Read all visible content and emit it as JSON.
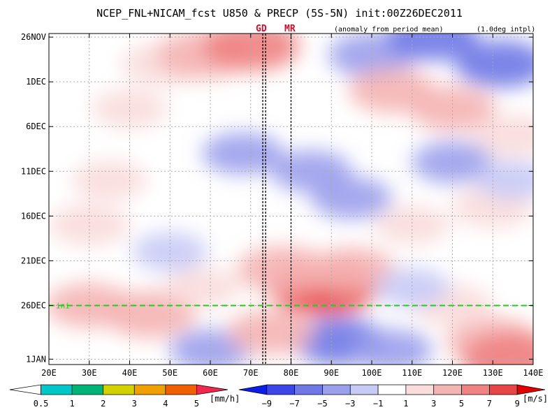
{
  "chart_data": {
    "type": "heatmap",
    "title": "NCEP_FNL+NICAM_fcst U850 & PRECP (5S-5N) init:00Z26DEC2011",
    "note_left": "(anomaly from period mean)",
    "note_right": "(1.0deg intpl)",
    "x_ticks": [
      "20E",
      "30E",
      "40E",
      "50E",
      "60E",
      "70E",
      "80E",
      "90E",
      "100E",
      "110E",
      "120E",
      "130E",
      "140E"
    ],
    "x_lon_range": [
      20,
      140
    ],
    "y_ticks": [
      "26NOV",
      "1DEC",
      "6DEC",
      "11DEC",
      "16DEC",
      "21DEC",
      "26DEC",
      "1JAN"
    ],
    "y_day_index": [
      0,
      5,
      10,
      15,
      20,
      25,
      30,
      36
    ],
    "init_line_day_index": 30,
    "init_line_label": "ini",
    "vertical_markers": [
      {
        "label": "GD",
        "lon": 73
      },
      {
        "label": "MR",
        "lon": 80
      }
    ],
    "precip_colorbar": {
      "labels": [
        "0.5",
        "1",
        "2",
        "3",
        "4",
        "5"
      ],
      "unit": "[mm/h]",
      "colors": [
        "#ffffff",
        "#00c8c8",
        "#00b478",
        "#d2d200",
        "#f0a000",
        "#f06000",
        "#f02850"
      ]
    },
    "u850_colorbar": {
      "labels": [
        "−9",
        "−7",
        "−5",
        "−3",
        "−1",
        "1",
        "3",
        "5",
        "7",
        "9"
      ],
      "unit": "[m/s]",
      "colors": [
        "#0a1ee6",
        "#3c46e6",
        "#6e78e6",
        "#9ba0ec",
        "#c8caf6",
        "#ffffff",
        "#fadcdc",
        "#f5b4b4",
        "#f08282",
        "#e84646",
        "#e00000"
      ]
    },
    "anomaly_pattern": [
      {
        "lon": 48,
        "day": 3,
        "value": 3
      },
      {
        "lon": 58,
        "day": 2,
        "value": 5
      },
      {
        "lon": 70,
        "day": 1,
        "value": 6
      },
      {
        "lon": 100,
        "day": 2,
        "value": -4
      },
      {
        "lon": 115,
        "day": 0,
        "value": -5
      },
      {
        "lon": 132,
        "day": 3,
        "value": -5
      },
      {
        "lon": 105,
        "day": 6,
        "value": 4
      },
      {
        "lon": 120,
        "day": 8,
        "value": 4
      },
      {
        "lon": 135,
        "day": 11,
        "value": 3
      },
      {
        "lon": 40,
        "day": 8,
        "value": 2
      },
      {
        "lon": 68,
        "day": 13,
        "value": -3
      },
      {
        "lon": 85,
        "day": 15,
        "value": -3
      },
      {
        "lon": 95,
        "day": 18,
        "value": -3
      },
      {
        "lon": 35,
        "day": 16,
        "value": 2
      },
      {
        "lon": 30,
        "day": 21,
        "value": 3
      },
      {
        "lon": 120,
        "day": 14,
        "value": -3
      },
      {
        "lon": 130,
        "day": 19,
        "value": 3
      },
      {
        "lon": 135,
        "day": 16,
        "value": -2
      },
      {
        "lon": 110,
        "day": 21,
        "value": 2
      },
      {
        "lon": 88,
        "day": 28,
        "value": 8
      },
      {
        "lon": 78,
        "day": 26,
        "value": 5
      },
      {
        "lon": 95,
        "day": 26,
        "value": 4
      },
      {
        "lon": 45,
        "day": 31,
        "value": 5
      },
      {
        "lon": 30,
        "day": 30,
        "value": 4
      },
      {
        "lon": 58,
        "day": 28,
        "value": 2
      },
      {
        "lon": 92,
        "day": 34,
        "value": -5
      },
      {
        "lon": 105,
        "day": 35,
        "value": -3
      },
      {
        "lon": 130,
        "day": 34,
        "value": 5
      },
      {
        "lon": 135,
        "day": 36,
        "value": 7
      },
      {
        "lon": 120,
        "day": 30,
        "value": 3
      },
      {
        "lon": 60,
        "day": 35,
        "value": -3
      },
      {
        "lon": 75,
        "day": 33,
        "value": 4
      },
      {
        "lon": 50,
        "day": 24,
        "value": -2
      },
      {
        "lon": 110,
        "day": 28,
        "value": -2
      }
    ]
  }
}
